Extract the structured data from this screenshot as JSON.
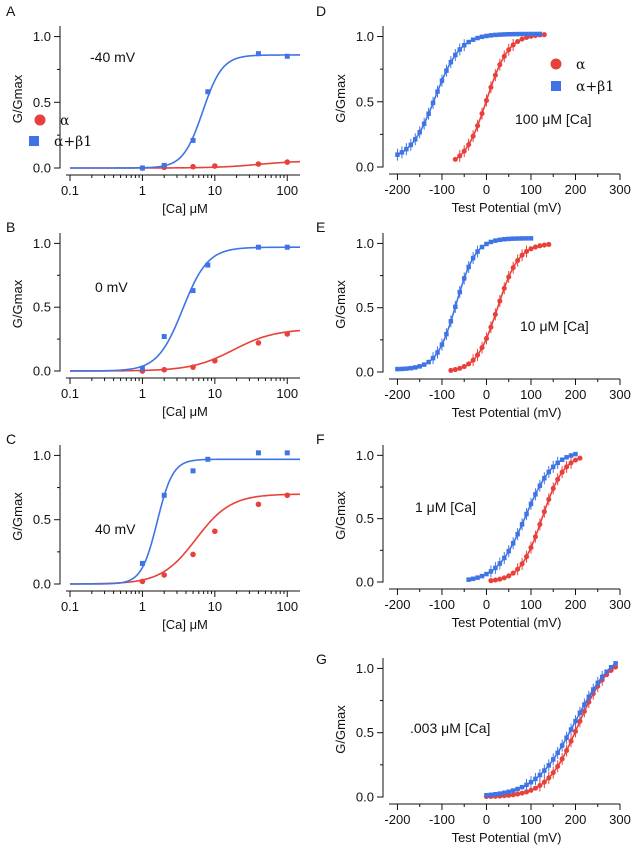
{
  "colors": {
    "alpha": "#e8413c",
    "alpha_beta1": "#3f74e6",
    "axis": "#111111"
  },
  "legend": {
    "alpha": "α",
    "alpha_beta1": "α+β1"
  },
  "chart_data": [
    {
      "panel": "A",
      "type": "scatter",
      "xscale": "log",
      "xlim": [
        0.1,
        150
      ],
      "ylim": [
        0,
        1.05
      ],
      "xticks": [
        "0.1",
        "1",
        "10",
        "100"
      ],
      "yticks": [
        "0.0",
        "0.5",
        "1.0"
      ],
      "xlabel": "[Ca] μM",
      "ylabel": "G/Gmax",
      "annotation": "-40 mV",
      "legend_shown": true,
      "series": [
        {
          "key": "alpha",
          "name": "α",
          "marker": "circle",
          "points": [
            [
              1,
              0.0
            ],
            [
              2,
              0.005
            ],
            [
              5,
              0.01
            ],
            [
              10,
              0.015
            ],
            [
              40,
              0.03
            ],
            [
              100,
              0.045
            ]
          ],
          "fit": {
            "top": 0.055,
            "k": 40,
            "n": 1.5
          }
        },
        {
          "key": "alpha_beta1",
          "name": "α+β1",
          "marker": "square",
          "points": [
            [
              1,
              0.0
            ],
            [
              2,
              0.02
            ],
            [
              5,
              0.21
            ],
            [
              8,
              0.58
            ],
            [
              40,
              0.87
            ],
            [
              100,
              0.85
            ]
          ],
          "fit": {
            "top": 0.86,
            "k": 6.8,
            "n": 3.2
          }
        }
      ]
    },
    {
      "panel": "B",
      "type": "scatter",
      "xscale": "log",
      "xlim": [
        0.1,
        150
      ],
      "ylim": [
        0,
        1.05
      ],
      "xticks": [
        "0.1",
        "1",
        "10",
        "100"
      ],
      "yticks": [
        "0.0",
        "0.5",
        "1.0"
      ],
      "xlabel": "[Ca] μM",
      "ylabel": "G/Gmax",
      "annotation": "0 mV",
      "legend_shown": false,
      "series": [
        {
          "key": "alpha",
          "name": "α",
          "marker": "circle",
          "points": [
            [
              1,
              0.0
            ],
            [
              2,
              0.01
            ],
            [
              5,
              0.03
            ],
            [
              10,
              0.08
            ],
            [
              40,
              0.22
            ],
            [
              100,
              0.29
            ]
          ],
          "fit": {
            "top": 0.33,
            "k": 18,
            "n": 1.5
          }
        },
        {
          "key": "alpha_beta1",
          "name": "α+β1",
          "marker": "square",
          "points": [
            [
              1,
              0.02
            ],
            [
              2,
              0.27
            ],
            [
              5,
              0.63
            ],
            [
              8,
              0.83
            ],
            [
              40,
              0.97
            ],
            [
              100,
              0.97
            ]
          ],
          "fit": {
            "top": 0.97,
            "k": 3.6,
            "n": 2.5
          }
        }
      ]
    },
    {
      "panel": "C",
      "type": "scatter",
      "xscale": "log",
      "xlim": [
        0.1,
        150
      ],
      "ylim": [
        0,
        1.05
      ],
      "xticks": [
        "0.1",
        "1",
        "10",
        "100"
      ],
      "yticks": [
        "0.0",
        "0.5",
        "1.0"
      ],
      "xlabel": "[Ca] μM",
      "ylabel": "G/Gmax",
      "annotation": "40 mV",
      "legend_shown": false,
      "series": [
        {
          "key": "alpha",
          "name": "α",
          "marker": "circle",
          "points": [
            [
              1,
              0.02
            ],
            [
              2,
              0.07
            ],
            [
              5,
              0.23
            ],
            [
              10,
              0.41
            ],
            [
              40,
              0.62
            ],
            [
              100,
              0.69
            ]
          ],
          "fit": {
            "top": 0.7,
            "k": 5.5,
            "n": 1.8
          }
        },
        {
          "key": "alpha_beta1",
          "name": "α+β1",
          "marker": "square",
          "points": [
            [
              1,
              0.16
            ],
            [
              2,
              0.69
            ],
            [
              5,
              0.88
            ],
            [
              8,
              0.97
            ],
            [
              40,
              1.02
            ],
            [
              100,
              1.02
            ]
          ],
          "fit": {
            "top": 0.97,
            "k": 1.6,
            "n": 4.0
          }
        }
      ]
    },
    {
      "panel": "D",
      "type": "scatter",
      "xscale": "linear",
      "xlim": [
        -210,
        300
      ],
      "ylim": [
        0,
        1.05
      ],
      "xticks": [
        "-200",
        "-100",
        "0",
        "100",
        "200",
        "300"
      ],
      "yticks": [
        "0.0",
        "0.5",
        "1.0"
      ],
      "xlabel": "Test Potential (mV)",
      "ylabel": "G/Gmax",
      "annotation": "100 μM [Ca]",
      "legend_shown": true,
      "series": [
        {
          "key": "alpha",
          "name": "α",
          "marker": "circle",
          "range": [
            -70,
            130
          ],
          "fit": {
            "v": 0,
            "k": 25,
            "top": 1.02
          }
        },
        {
          "key": "alpha_beta1",
          "name": "α+β1",
          "marker": "square",
          "range": [
            -200,
            120
          ],
          "fit": {
            "v": -115,
            "k": 28,
            "top": 1.02,
            "base": 0.05
          }
        }
      ]
    },
    {
      "panel": "E",
      "type": "scatter",
      "xscale": "linear",
      "xlim": [
        -210,
        300
      ],
      "ylim": [
        0,
        1.05
      ],
      "xticks": [
        "-200",
        "-100",
        "0",
        "100",
        "200",
        "300"
      ],
      "yticks": [
        "0.0",
        "0.5",
        "1.0"
      ],
      "xlabel": "Test Potential (mV)",
      "ylabel": "G/Gmax",
      "annotation": "10 μM [Ca]",
      "legend_shown": false,
      "series": [
        {
          "key": "alpha",
          "name": "α",
          "marker": "circle",
          "range": [
            -80,
            140
          ],
          "fit": {
            "v": 25,
            "k": 24,
            "top": 1.0
          }
        },
        {
          "key": "alpha_beta1",
          "name": "α+β1",
          "marker": "square",
          "range": [
            -200,
            100
          ],
          "fit": {
            "v": -68,
            "k": 22,
            "top": 1.04,
            "base": 0.02
          }
        }
      ]
    },
    {
      "panel": "F",
      "type": "scatter",
      "xscale": "linear",
      "xlim": [
        -210,
        300
      ],
      "ylim": [
        0,
        1.05
      ],
      "xticks": [
        "-200",
        "-100",
        "0",
        "100",
        "200",
        "300"
      ],
      "yticks": [
        "0.0",
        "0.5",
        "1.0"
      ],
      "xlabel": "Test Potential (mV)",
      "ylabel": "G/Gmax",
      "annotation": "1 μM [Ca]",
      "legend_shown": false,
      "series": [
        {
          "key": "alpha",
          "name": "α",
          "marker": "circle",
          "range": [
            10,
            210
          ],
          "fit": {
            "v": 125,
            "k": 25,
            "top": 1.01
          }
        },
        {
          "key": "alpha_beta1",
          "name": "α+β1",
          "marker": "square",
          "range": [
            -40,
            200
          ],
          "fit": {
            "v": 88,
            "k": 32,
            "top": 1.04
          }
        }
      ]
    },
    {
      "panel": "G",
      "type": "scatter",
      "xscale": "linear",
      "xlim": [
        -210,
        300
      ],
      "ylim": [
        0,
        1.05
      ],
      "xticks": [
        "-200",
        "-100",
        "0",
        "100",
        "200",
        "300"
      ],
      "yticks": [
        "0.0",
        "0.5",
        "1.0"
      ],
      "xlabel": "Test Potential (mV)",
      "ylabel": "G/Gmax",
      "annotation": ".003 μM [Ca]",
      "legend_shown": false,
      "series": [
        {
          "key": "alpha",
          "name": "α",
          "marker": "circle",
          "range": [
            0,
            290
          ],
          "fit": {
            "v": 205,
            "k": 35,
            "top": 1.1
          }
        },
        {
          "key": "alpha_beta1",
          "name": "α+β1",
          "marker": "square",
          "range": [
            0,
            295
          ],
          "fit": {
            "v": 200,
            "k": 45,
            "top": 1.18
          }
        }
      ]
    }
  ]
}
